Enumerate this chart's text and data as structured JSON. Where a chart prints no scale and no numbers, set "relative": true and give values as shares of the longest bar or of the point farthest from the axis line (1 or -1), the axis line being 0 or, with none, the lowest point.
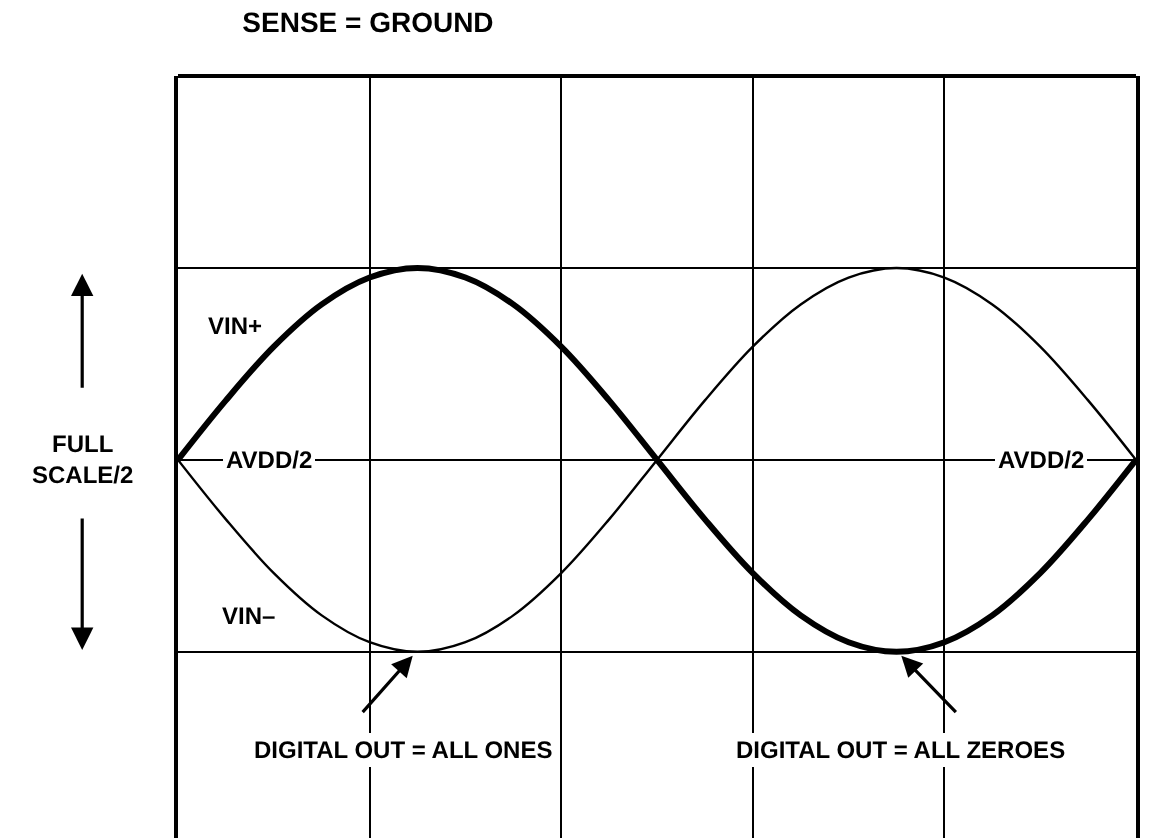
{
  "chart_data": {
    "type": "line",
    "title": "SENSE = GROUND",
    "ylabel": "FULL SCALE/2",
    "relative": true,
    "grid": true,
    "legend": false,
    "marker": "none",
    "line_style": "solid",
    "categories": [
      null,
      null,
      null,
      null,
      null,
      null,
      null,
      null,
      null,
      null,
      null,
      null,
      null,
      null,
      null,
      null,
      null,
      null,
      null,
      null,
      null
    ],
    "series": [
      {
        "name": "VIN+",
        "color": "#000000",
        "values": [
          0,
          0.31,
          0.59,
          0.81,
          0.95,
          1,
          0.95,
          0.81,
          0.59,
          0.31,
          0,
          -0.31,
          -0.59,
          -0.81,
          -0.95,
          -1,
          -0.95,
          -0.81,
          -0.59,
          -0.31,
          0
        ]
      },
      {
        "name": "VIN–",
        "color": "#000000",
        "values": [
          0,
          -0.31,
          -0.59,
          -0.81,
          -0.95,
          -1,
          -0.95,
          -0.81,
          -0.59,
          -0.31,
          0,
          0.31,
          0.59,
          0.81,
          0.95,
          1,
          0.95,
          0.81,
          0.59,
          0.31,
          0
        ]
      }
    ],
    "annotations": [
      "AVDD/2",
      "AVDD/2",
      "DIGITAL OUT = ALL ONES",
      "DIGITAL OUT = ALL ZEROES"
    ]
  }
}
